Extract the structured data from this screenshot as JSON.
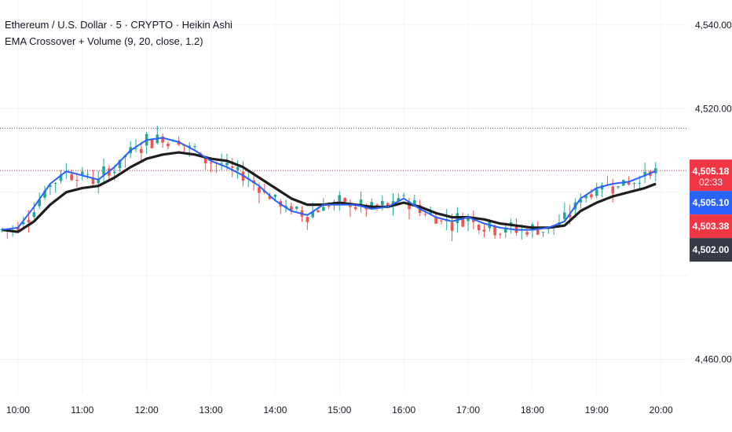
{
  "header": {
    "title": "Ethereum / U.S. Dollar · 5 · CRYPTO · Heikin Ashi",
    "indicator": "EMA Crossover + Volume (9, 20, close, 1.2)"
  },
  "colors": {
    "up": "#26a69a",
    "down": "#ef5350",
    "ema_fast": "#2962ff",
    "ema_slow": "#1e1e1e",
    "grid": "#f0f3fa",
    "price_line": "#b22833",
    "high_line": "#555555"
  },
  "price_badges": [
    {
      "value": "4,505.18",
      "sub": "02:33",
      "color": "#f23645",
      "price": 4505.18
    },
    {
      "value": "4,505.10",
      "color": "#2962ff",
      "price": 4505.1
    },
    {
      "value": "4,503.38",
      "color": "#f23645",
      "price": 4503.38
    },
    {
      "value": "4,502.00",
      "color": "#363a45",
      "price": 4502.0
    }
  ],
  "chart_data": {
    "type": "candlestick",
    "y_ticks": [
      "4,540.00",
      "4,520.00",
      "4,460.00"
    ],
    "y_tick_values": [
      4540,
      4520,
      4460
    ],
    "x_ticks": [
      "10:00",
      "11:00",
      "12:00",
      "13:00",
      "14:00",
      "15:00",
      "16:00",
      "17:00",
      "18:00",
      "19:00",
      "20:00"
    ],
    "x_tick_hours": [
      10,
      11,
      12,
      13,
      14,
      15,
      16,
      17,
      18,
      19,
      20
    ],
    "x_range_hours": [
      9.72,
      20.42
    ],
    "ylim": [
      4452,
      4546
    ],
    "dotted_high_level": 4515.3,
    "current_price_level": 4505.18,
    "grid": true,
    "series": [
      {
        "name": "EMA 9",
        "x": [
          9.75,
          10.0,
          10.25,
          10.5,
          10.75,
          11.0,
          11.25,
          11.5,
          11.75,
          12.0,
          12.25,
          12.5,
          12.75,
          13.0,
          13.25,
          13.5,
          13.75,
          14.0,
          14.25,
          14.5,
          14.75,
          15.0,
          15.25,
          15.5,
          15.75,
          16.0,
          16.25,
          16.5,
          16.75,
          17.0,
          17.25,
          17.5,
          17.75,
          18.0,
          18.25,
          18.5,
          18.75,
          19.0,
          19.25,
          19.5,
          19.75,
          19.92
        ],
        "y": [
          4491.0,
          4491.5,
          4496.5,
          4502.0,
          4505.0,
          4504.0,
          4503.0,
          4506.0,
          4510.0,
          4512.5,
          4513.0,
          4512.0,
          4510.0,
          4507.5,
          4506.0,
          4504.0,
          4501.5,
          4498.0,
          4495.5,
          4494.5,
          4497.0,
          4497.0,
          4497.0,
          4496.0,
          4496.5,
          4498.5,
          4496.0,
          4494.0,
          4493.0,
          4494.0,
          4492.5,
          4491.5,
          4491.0,
          4491.0,
          4491.5,
          4493.0,
          4498.5,
          4501.0,
          4502.0,
          4502.5,
          4504.0,
          4505.1
        ]
      },
      {
        "name": "EMA 20",
        "x": [
          9.75,
          10.0,
          10.25,
          10.5,
          10.75,
          11.0,
          11.25,
          11.5,
          11.75,
          12.0,
          12.25,
          12.5,
          12.75,
          13.0,
          13.25,
          13.5,
          13.75,
          14.0,
          14.25,
          14.5,
          14.75,
          15.0,
          15.25,
          15.5,
          15.75,
          16.0,
          16.25,
          16.5,
          16.75,
          17.0,
          17.25,
          17.5,
          17.75,
          18.0,
          18.25,
          18.5,
          18.75,
          19.0,
          19.25,
          19.5,
          19.75,
          19.92
        ],
        "y": [
          4491.0,
          4490.5,
          4493.0,
          4497.0,
          4500.0,
          4501.0,
          4501.5,
          4503.5,
          4506.0,
          4508.0,
          4509.0,
          4509.5,
          4509.0,
          4508.0,
          4507.5,
          4506.0,
          4503.5,
          4501.0,
          4498.5,
          4497.0,
          4497.0,
          4497.5,
          4497.0,
          4496.5,
          4496.5,
          4497.5,
          4496.5,
          4495.0,
          4494.0,
          4494.0,
          4493.5,
          4492.5,
          4492.0,
          4491.5,
          4491.5,
          4492.0,
          4495.5,
          4497.5,
          4499.0,
          4500.0,
          4501.0,
          4502.0
        ]
      }
    ]
  }
}
